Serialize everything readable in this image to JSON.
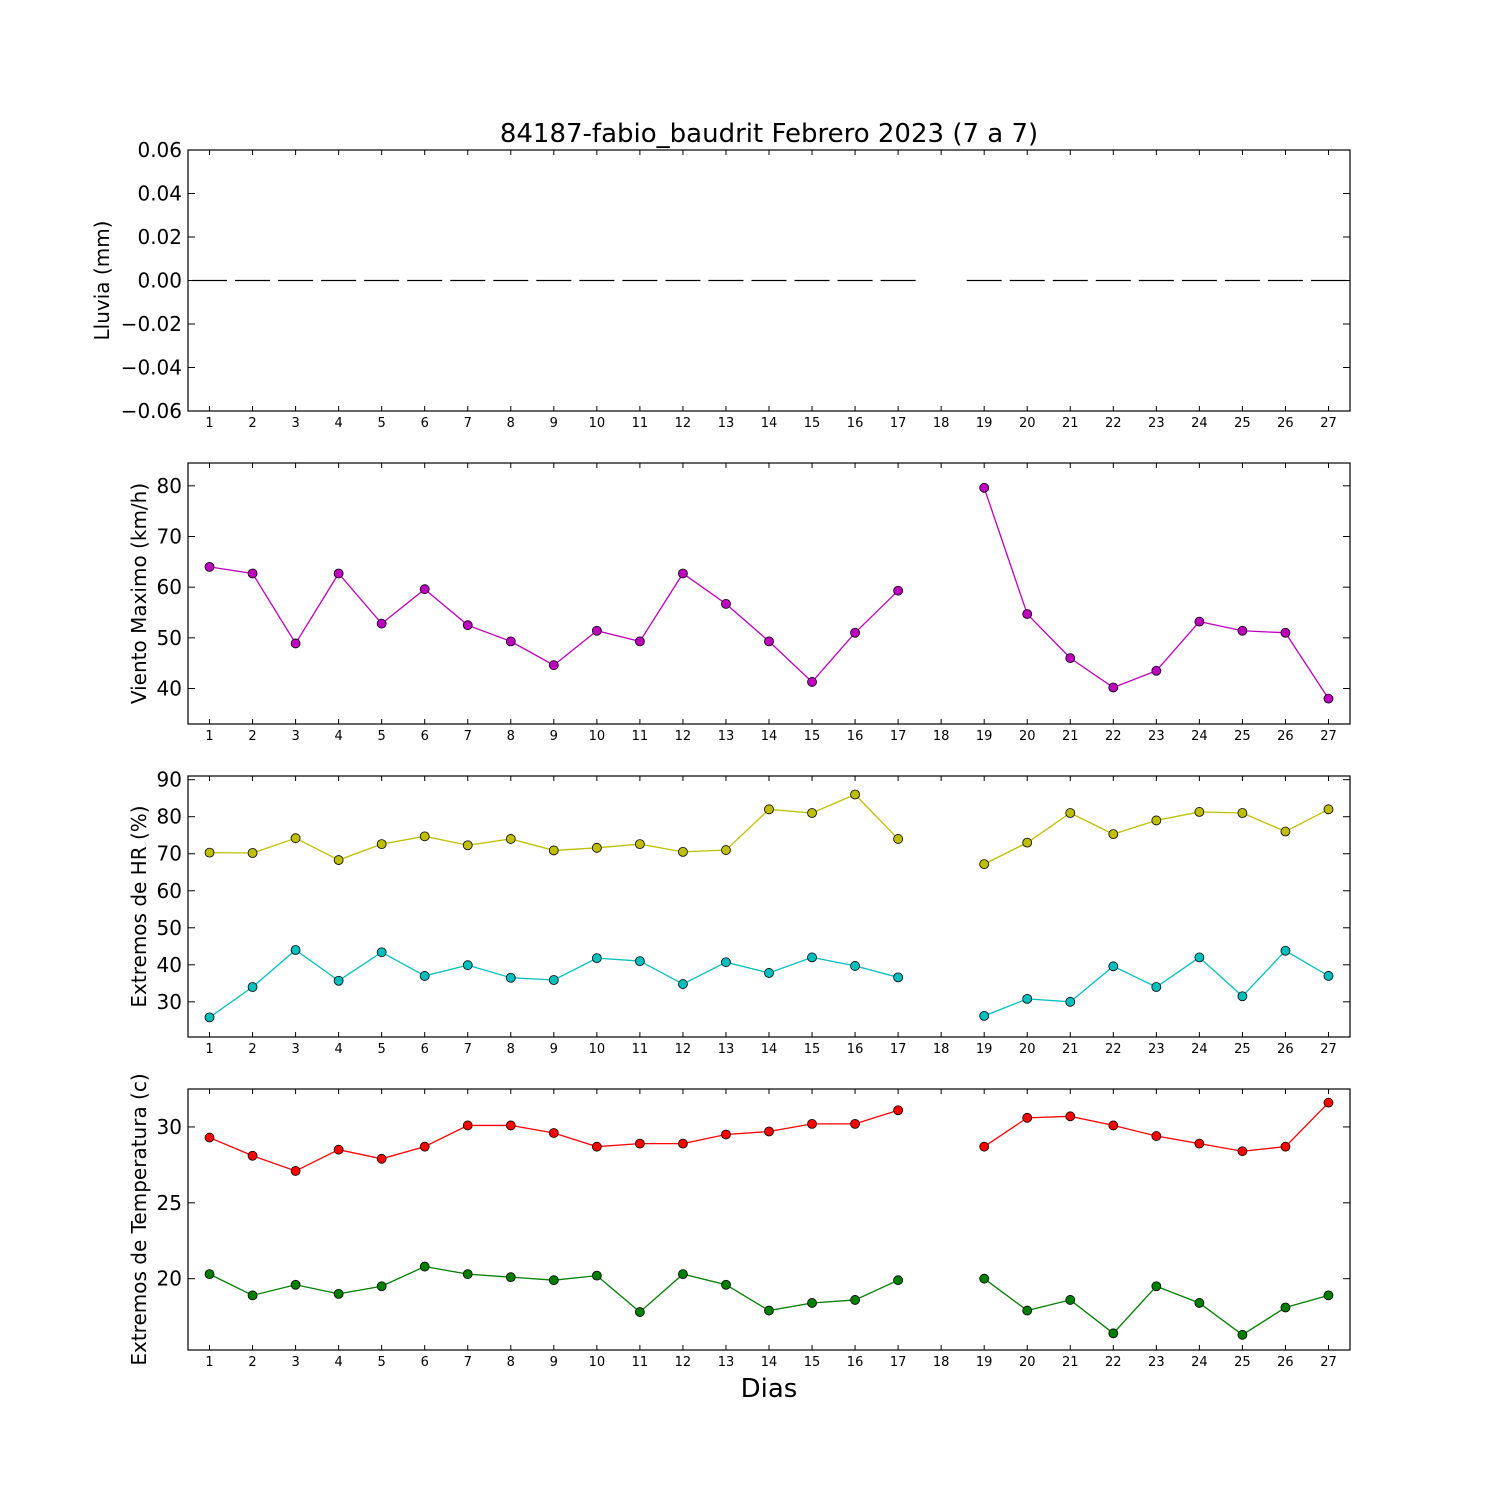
{
  "title": "84187-fabio_baudrit Febrero 2023  (7 a 7)",
  "xlabel": "Dias",
  "chart_data": [
    {
      "type": "line",
      "ylabel": "Lluvia (mm)",
      "x": [
        1,
        2,
        3,
        4,
        5,
        6,
        7,
        8,
        9,
        10,
        11,
        12,
        13,
        14,
        15,
        16,
        17,
        18,
        19,
        20,
        21,
        22,
        23,
        24,
        25,
        26,
        27
      ],
      "ylim": [
        -0.06,
        0.06
      ],
      "yticks": [
        "0.06",
        "0.04",
        "0.02",
        "0.00",
        "−0.02",
        "−0.04",
        "−0.06"
      ],
      "ytick_values": [
        0.06,
        0.04,
        0.02,
        0.0,
        -0.02,
        -0.04,
        -0.06
      ],
      "series": [
        {
          "color": "#000000",
          "style": "bars",
          "markers": false,
          "values": [
            0,
            0,
            0,
            0,
            0,
            0,
            0,
            0,
            0,
            0,
            0,
            0,
            0,
            0,
            0,
            0,
            0,
            null,
            0,
            0,
            0,
            0,
            0,
            0,
            0,
            0,
            0
          ]
        }
      ]
    },
    {
      "type": "line",
      "ylabel": "Viento Maximo (km/h)",
      "x": [
        1,
        2,
        3,
        4,
        5,
        6,
        7,
        8,
        9,
        10,
        11,
        12,
        13,
        14,
        15,
        16,
        17,
        18,
        19,
        20,
        21,
        22,
        23,
        24,
        25,
        26,
        27
      ],
      "ylim": [
        33,
        84.5
      ],
      "yticks": [
        "80",
        "70",
        "60",
        "50",
        "40"
      ],
      "ytick_values": [
        80,
        70,
        60,
        50,
        40
      ],
      "series": [
        {
          "color": "#bf00bf",
          "style": "line",
          "markers": true,
          "values": [
            64,
            62.7,
            48.9,
            62.7,
            52.8,
            59.6,
            52.5,
            49.3,
            44.6,
            51.4,
            49.3,
            62.7,
            56.7,
            49.3,
            41.3,
            51,
            59.3,
            null,
            79.6,
            54.7,
            46,
            40.2,
            43.5,
            53.2,
            51.4,
            51,
            38
          ]
        }
      ]
    },
    {
      "type": "line",
      "ylabel": "Extremos de HR (%)",
      "x": [
        1,
        2,
        3,
        4,
        5,
        6,
        7,
        8,
        9,
        10,
        11,
        12,
        13,
        14,
        15,
        16,
        17,
        18,
        19,
        20,
        21,
        22,
        23,
        24,
        25,
        26,
        27
      ],
      "ylim": [
        20.5,
        91
      ],
      "yticks": [
        "90",
        "80",
        "70",
        "60",
        "50",
        "40",
        "30"
      ],
      "ytick_values": [
        90,
        80,
        70,
        60,
        50,
        40,
        30
      ],
      "series": [
        {
          "color": "#bfbf00",
          "style": "line",
          "markers": true,
          "values": [
            70.3,
            70.2,
            74.2,
            68.3,
            72.6,
            74.7,
            72.3,
            74,
            70.9,
            71.6,
            72.6,
            70.5,
            71,
            82,
            81,
            86,
            74,
            null,
            67.2,
            73,
            81,
            75.3,
            79,
            81.3,
            81,
            76,
            82
          ]
        },
        {
          "color": "#00bfbf",
          "style": "line",
          "markers": true,
          "values": [
            25.8,
            34,
            44,
            35.7,
            43.4,
            37,
            39.9,
            36.5,
            35.9,
            41.8,
            41,
            34.8,
            40.7,
            37.8,
            42,
            39.7,
            36.6,
            null,
            26.2,
            30.8,
            30,
            39.6,
            34,
            42,
            31.5,
            43.8,
            37
          ]
        }
      ]
    },
    {
      "type": "line",
      "ylabel": "Extremos de Temperatura (c)",
      "x": [
        1,
        2,
        3,
        4,
        5,
        6,
        7,
        8,
        9,
        10,
        11,
        12,
        13,
        14,
        15,
        16,
        17,
        18,
        19,
        20,
        21,
        22,
        23,
        24,
        25,
        26,
        27
      ],
      "ylim": [
        15.3,
        32.5
      ],
      "yticks": [
        "30",
        "25",
        "20"
      ],
      "ytick_values": [
        30,
        25,
        20
      ],
      "series": [
        {
          "color": "#ff0000",
          "style": "line",
          "markers": true,
          "values": [
            29.3,
            28.1,
            27.1,
            28.5,
            27.9,
            28.7,
            30.1,
            30.1,
            29.6,
            28.7,
            28.9,
            28.9,
            29.5,
            29.7,
            30.2,
            30.2,
            31.1,
            null,
            28.7,
            30.6,
            30.7,
            30.1,
            29.4,
            28.9,
            28.4,
            28.7,
            31.6
          ]
        },
        {
          "color": "#007f00",
          "style": "line",
          "markers": true,
          "values": [
            20.3,
            18.9,
            19.6,
            19,
            19.5,
            20.8,
            20.3,
            20.1,
            19.9,
            20.2,
            17.8,
            20.3,
            19.6,
            17.9,
            18.4,
            18.6,
            19.9,
            null,
            20,
            17.9,
            18.6,
            16.4,
            19.5,
            18.4,
            16.3,
            18.1,
            18.9
          ]
        }
      ]
    }
  ]
}
